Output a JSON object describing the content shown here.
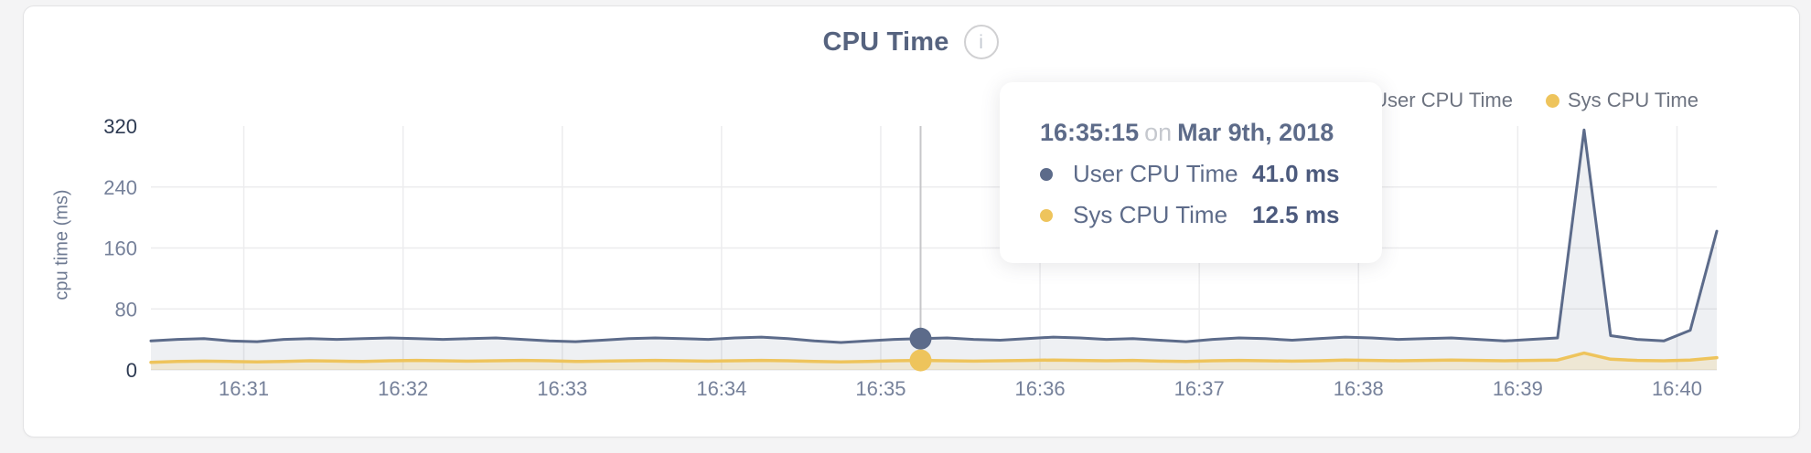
{
  "page": {
    "background": "#f4f4f5"
  },
  "header": {
    "title": "CPU Time",
    "info_glyph": "i"
  },
  "legend": {
    "items": [
      {
        "label": "User CPU Time",
        "color": "#5c6b8a"
      },
      {
        "label": "Sys CPU Time",
        "color": "#eec45c"
      }
    ]
  },
  "tooltip": {
    "time": "16:35:15",
    "on_word": "on",
    "date": "Mar 9th, 2018",
    "rows": [
      {
        "label": "User CPU Time",
        "value": "41.0 ms",
        "color": "#5c6b8a"
      },
      {
        "label": "Sys CPU Time",
        "value": "12.5 ms",
        "color": "#eec45c"
      }
    ]
  },
  "chart_data": {
    "type": "area",
    "title": "CPU Time",
    "xlabel": "",
    "ylabel": "cpu time (ms)",
    "ylim": [
      0,
      320
    ],
    "y_ticks": [
      0,
      80,
      160,
      240,
      320
    ],
    "x_ticks": [
      "16:31",
      "16:32",
      "16:33",
      "16:34",
      "16:35",
      "16:36",
      "16:37",
      "16:38",
      "16:39",
      "16:40"
    ],
    "x_start": "16:30:25",
    "x_end": "16:40:15",
    "sample_interval_seconds": 10,
    "grid": true,
    "legend_position": "top-right",
    "hover": {
      "index": 29,
      "time": "16:35:15",
      "date": "Mar 9th, 2018",
      "values": [
        41.0,
        12.5
      ]
    },
    "series": [
      {
        "name": "User CPU Time",
        "unit": "ms",
        "color": "#5c6b8a",
        "fill": "rgba(92,107,138,0.10)",
        "values": [
          38,
          40,
          41,
          38,
          37,
          40,
          41,
          40,
          41,
          42,
          41,
          40,
          41,
          42,
          40,
          38,
          37,
          39,
          41,
          42,
          41,
          40,
          42,
          43,
          41,
          38,
          36,
          38,
          40,
          41,
          42,
          40,
          39,
          41,
          43,
          42,
          40,
          41,
          39,
          37,
          40,
          42,
          41,
          39,
          41,
          43,
          42,
          40,
          41,
          42,
          40,
          38,
          40,
          42,
          315,
          45,
          40,
          38,
          52,
          182
        ]
      },
      {
        "name": "Sys CPU Time",
        "unit": "ms",
        "color": "#eec45c",
        "fill": "rgba(238,196,92,0.20)",
        "values": [
          10,
          11,
          11.5,
          11,
          10.5,
          11,
          12,
          11.5,
          11,
          12,
          12.5,
          12,
          11.5,
          12,
          12.5,
          12,
          11,
          11.5,
          12,
          12.5,
          12,
          11.5,
          12,
          12.5,
          12,
          11,
          10.5,
          11,
          12,
          12.5,
          12,
          11.5,
          12,
          12.5,
          13,
          12.5,
          12,
          12.5,
          11.5,
          11,
          12,
          12.5,
          12,
          11.5,
          12,
          13,
          12.5,
          12,
          12.5,
          13,
          12.5,
          12,
          12.5,
          13,
          22,
          14,
          12.5,
          12,
          13,
          16
        ]
      }
    ]
  }
}
